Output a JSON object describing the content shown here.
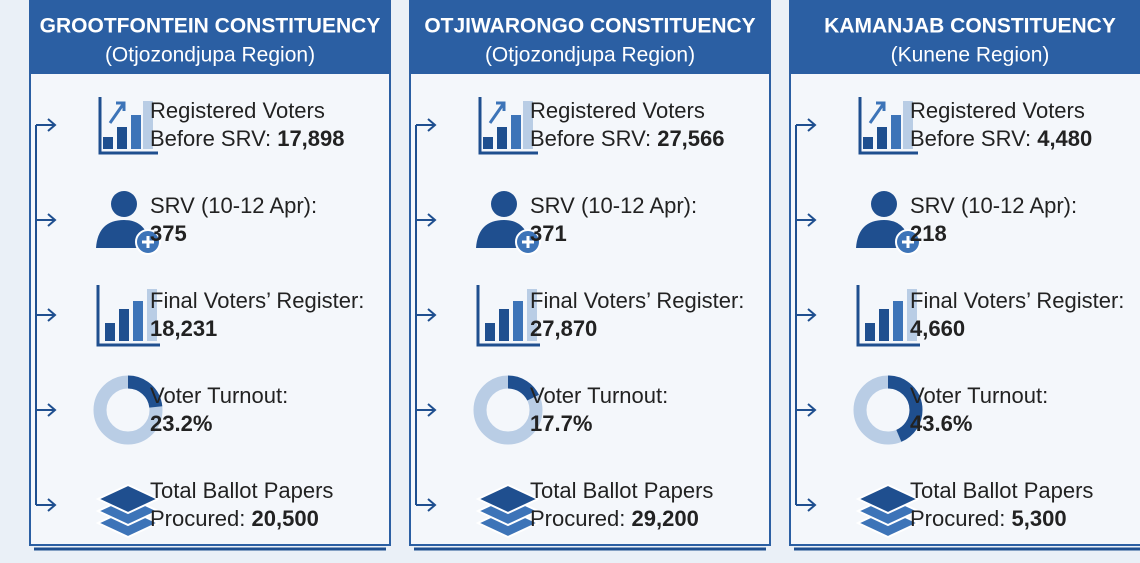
{
  "panels": [
    {
      "title": "GROOTFONTEIN CONSTITUENCY",
      "region": "(Otjozondjupa Region)",
      "items": [
        {
          "line1": "Registered Voters",
          "line2": "Before SRV:",
          "value": "17,898"
        },
        {
          "line1": "SRV (10-12 Apr):",
          "value": "375"
        },
        {
          "line1": "Final Voters’ Register:",
          "value": "18,231"
        },
        {
          "line1": "Voter Turnout:",
          "value": 23.2,
          "value_label": "23.2%"
        },
        {
          "line1": "Total Ballot Papers",
          "line2": "Procured:",
          "value": "20,500"
        }
      ]
    },
    {
      "title": "OTJIWARONGO CONSTITUENCY",
      "region": "(Otjozondjupa Region)",
      "items": [
        {
          "line1": "Registered Voters",
          "line2": "Before SRV:",
          "value": "27,566"
        },
        {
          "line1": "SRV (10-12 Apr):",
          "value": "371"
        },
        {
          "line1": "Final Voters’ Register:",
          "value": "27,870"
        },
        {
          "line1": "Voter Turnout:",
          "value": 17.7,
          "value_label": "17.7%"
        },
        {
          "line1": "Total Ballot Papers",
          "line2": "Procured:",
          "value": "29,200"
        }
      ]
    },
    {
      "title": "KAMANJAB CONSTITUENCY",
      "region": "(Kunene Region)",
      "items": [
        {
          "line1": "Registered Voters",
          "line2": "Before SRV:",
          "value": "4,480"
        },
        {
          "line1": "SRV (10-12 Apr):",
          "value": "218"
        },
        {
          "line1": "Final Voters’ Register:",
          "value": "4,660"
        },
        {
          "line1": "Voter Turnout:",
          "value": 43.6,
          "value_label": "43.6%"
        },
        {
          "line1": "Total Ballot Papers",
          "line2": "Procured:",
          "value": "5,300"
        }
      ]
    }
  ]
}
